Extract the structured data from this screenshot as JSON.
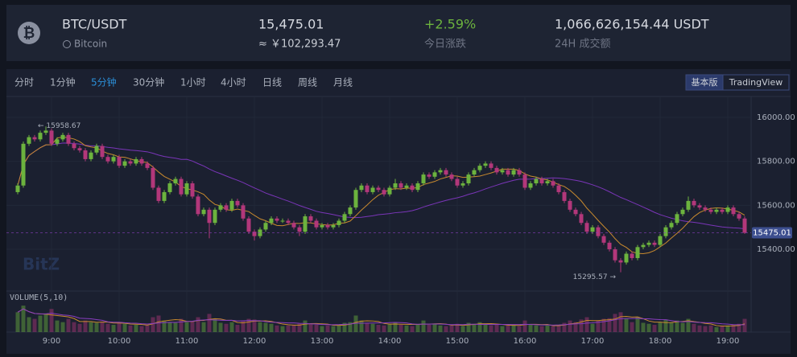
{
  "header": {
    "symbol": "BTC/USDT",
    "name": "Bitcoin",
    "price": "15,475.01",
    "price_cny": "≈ ￥102,293.47",
    "change": "+2.59%",
    "change_label": "今日涨跌",
    "volume": "1,066,626,154.44 USDT",
    "volume_label": "24H 成交额"
  },
  "toolbar": {
    "intervals": [
      "分时",
      "1分钟",
      "5分钟",
      "30分钟",
      "1小时",
      "4小时",
      "日线",
      "周线",
      "月线"
    ],
    "active": "5分钟",
    "modes": [
      "基本版",
      "TradingView"
    ]
  },
  "chart_data": {
    "type": "candlestick",
    "watermark": "BitZ",
    "up_color": "#6cb33e",
    "down_color": "#b2377a",
    "ylim": [
      15210,
      16095
    ],
    "yticks": [
      {
        "value": 16000,
        "label": "16000.00"
      },
      {
        "value": 15800,
        "label": "15800.00"
      },
      {
        "value": 15600,
        "label": "15600.00"
      },
      {
        "value": 15400,
        "label": "15400.00"
      }
    ],
    "xticks": [
      "9:00",
      "10:00",
      "11:00",
      "12:00",
      "13:00",
      "14:00",
      "15:00",
      "16:00",
      "17:00",
      "18:00",
      "19:00"
    ],
    "annotations": [
      "← 15958.67",
      "15295.57 →"
    ],
    "volume_title": "VOLUME(5,10)",
    "volume_ylim": [
      0,
      90
    ],
    "candles": [
      [
        15660,
        15700,
        15650,
        15690
      ],
      [
        15690,
        15890,
        15680,
        15880
      ],
      [
        15880,
        15920,
        15870,
        15910
      ],
      [
        15910,
        15920,
        15890,
        15900
      ],
      [
        15900,
        15940,
        15890,
        15930
      ],
      [
        15930,
        15958.67,
        15920,
        15940
      ],
      [
        15940,
        15950,
        15870,
        15880
      ],
      [
        15880,
        15910,
        15870,
        15900
      ],
      [
        15900,
        15930,
        15890,
        15920
      ],
      [
        15920,
        15930,
        15870,
        15880
      ],
      [
        15880,
        15890,
        15850,
        15860
      ],
      [
        15860,
        15870,
        15840,
        15850
      ],
      [
        15850,
        15860,
        15800,
        15810
      ],
      [
        15810,
        15850,
        15800,
        15840
      ],
      [
        15840,
        15880,
        15830,
        15870
      ],
      [
        15870,
        15880,
        15810,
        15820
      ],
      [
        15820,
        15830,
        15790,
        15800
      ],
      [
        15800,
        15830,
        15790,
        15820
      ],
      [
        15820,
        15830,
        15770,
        15780
      ],
      [
        15780,
        15810,
        15770,
        15800
      ],
      [
        15800,
        15810,
        15780,
        15790
      ],
      [
        15790,
        15820,
        15780,
        15810
      ],
      [
        15810,
        15820,
        15780,
        15790
      ],
      [
        15790,
        15800,
        15760,
        15770
      ],
      [
        15770,
        15780,
        15670,
        15680
      ],
      [
        15680,
        15690,
        15610,
        15620
      ],
      [
        15620,
        15670,
        15610,
        15660
      ],
      [
        15660,
        15710,
        15650,
        15700
      ],
      [
        15700,
        15730,
        15690,
        15720
      ],
      [
        15720,
        15730,
        15640,
        15650
      ],
      [
        15650,
        15710,
        15640,
        15700
      ],
      [
        15700,
        15710,
        15630,
        15640
      ],
      [
        15640,
        15650,
        15550,
        15560
      ],
      [
        15560,
        15590,
        15550,
        15580
      ],
      [
        15580,
        15590,
        15450,
        15520
      ],
      [
        15520,
        15590,
        15510,
        15580
      ],
      [
        15580,
        15610,
        15570,
        15600
      ],
      [
        15600,
        15610,
        15570,
        15580
      ],
      [
        15580,
        15630,
        15570,
        15620
      ],
      [
        15620,
        15630,
        15590,
        15600
      ],
      [
        15600,
        15610,
        15530,
        15540
      ],
      [
        15540,
        15550,
        15470,
        15480
      ],
      [
        15480,
        15490,
        15440,
        15460
      ],
      [
        15460,
        15500,
        15450,
        15490
      ],
      [
        15490,
        15530,
        15480,
        15520
      ],
      [
        15520,
        15550,
        15510,
        15540
      ],
      [
        15540,
        15550,
        15520,
        15530
      ],
      [
        15530,
        15540,
        15520,
        15530
      ],
      [
        15530,
        15540,
        15510,
        15520
      ],
      [
        15520,
        15530,
        15490,
        15500
      ],
      [
        15500,
        15510,
        15460,
        15480
      ],
      [
        15480,
        15560,
        15470,
        15550
      ],
      [
        15550,
        15560,
        15520,
        15530
      ],
      [
        15530,
        15540,
        15490,
        15500
      ],
      [
        15500,
        15520,
        15490,
        15510
      ],
      [
        15510,
        15520,
        15490,
        15500
      ],
      [
        15500,
        15520,
        15490,
        15510
      ],
      [
        15510,
        15540,
        15500,
        15530
      ],
      [
        15530,
        15570,
        15520,
        15560
      ],
      [
        15560,
        15600,
        15550,
        15590
      ],
      [
        15590,
        15680,
        15580,
        15670
      ],
      [
        15670,
        15700,
        15660,
        15690
      ],
      [
        15690,
        15700,
        15650,
        15660
      ],
      [
        15660,
        15690,
        15650,
        15680
      ],
      [
        15680,
        15690,
        15660,
        15670
      ],
      [
        15670,
        15680,
        15640,
        15650
      ],
      [
        15650,
        15690,
        15640,
        15680
      ],
      [
        15680,
        15720,
        15670,
        15700
      ],
      [
        15700,
        15710,
        15670,
        15680
      ],
      [
        15680,
        15700,
        15670,
        15690
      ],
      [
        15690,
        15700,
        15660,
        15670
      ],
      [
        15670,
        15710,
        15660,
        15700
      ],
      [
        15700,
        15750,
        15690,
        15740
      ],
      [
        15740,
        15750,
        15720,
        15730
      ],
      [
        15730,
        15760,
        15720,
        15750
      ],
      [
        15750,
        15770,
        15740,
        15760
      ],
      [
        15760,
        15770,
        15730,
        15740
      ],
      [
        15740,
        15750,
        15710,
        15720
      ],
      [
        15720,
        15730,
        15680,
        15690
      ],
      [
        15690,
        15710,
        15680,
        15700
      ],
      [
        15700,
        15750,
        15690,
        15740
      ],
      [
        15740,
        15770,
        15730,
        15760
      ],
      [
        15760,
        15790,
        15750,
        15780
      ],
      [
        15780,
        15800,
        15770,
        15790
      ],
      [
        15790,
        15800,
        15760,
        15770
      ],
      [
        15770,
        15780,
        15740,
        15750
      ],
      [
        15750,
        15770,
        15740,
        15760
      ],
      [
        15760,
        15770,
        15730,
        15740
      ],
      [
        15740,
        15770,
        15730,
        15760
      ],
      [
        15760,
        15770,
        15730,
        15740
      ],
      [
        15740,
        15750,
        15670,
        15680
      ],
      [
        15680,
        15710,
        15670,
        15700
      ],
      [
        15700,
        15730,
        15690,
        15720
      ],
      [
        15720,
        15730,
        15690,
        15700
      ],
      [
        15700,
        15720,
        15690,
        15710
      ],
      [
        15710,
        15720,
        15680,
        15690
      ],
      [
        15690,
        15700,
        15650,
        15660
      ],
      [
        15660,
        15670,
        15610,
        15620
      ],
      [
        15620,
        15630,
        15570,
        15580
      ],
      [
        15580,
        15590,
        15550,
        15560
      ],
      [
        15560,
        15570,
        15510,
        15520
      ],
      [
        15520,
        15530,
        15470,
        15480
      ],
      [
        15480,
        15510,
        15470,
        15500
      ],
      [
        15500,
        15510,
        15450,
        15460
      ],
      [
        15460,
        15470,
        15420,
        15430
      ],
      [
        15430,
        15440,
        15390,
        15400
      ],
      [
        15400,
        15410,
        15340,
        15350
      ],
      [
        15350,
        15360,
        15295.57,
        15340
      ],
      [
        15340,
        15390,
        15330,
        15380
      ],
      [
        15380,
        15390,
        15350,
        15360
      ],
      [
        15360,
        15420,
        15350,
        15410
      ],
      [
        15410,
        15430,
        15400,
        15420
      ],
      [
        15420,
        15440,
        15410,
        15430
      ],
      [
        15430,
        15440,
        15410,
        15420
      ],
      [
        15420,
        15470,
        15410,
        15460
      ],
      [
        15460,
        15510,
        15450,
        15500
      ],
      [
        15500,
        15530,
        15490,
        15520
      ],
      [
        15520,
        15570,
        15510,
        15560
      ],
      [
        15560,
        15590,
        15550,
        15580
      ],
      [
        15580,
        15640,
        15570,
        15620
      ],
      [
        15620,
        15630,
        15590,
        15600
      ],
      [
        15600,
        15610,
        15580,
        15590
      ],
      [
        15590,
        15600,
        15570,
        15580
      ],
      [
        15580,
        15590,
        15560,
        15570
      ],
      [
        15570,
        15590,
        15560,
        15580
      ],
      [
        15580,
        15590,
        15560,
        15570
      ],
      [
        15570,
        15600,
        15560,
        15590
      ],
      [
        15590,
        15600,
        15550,
        15560
      ],
      [
        15560,
        15570,
        15530,
        15540
      ],
      [
        15540,
        15550,
        15470,
        15475.01
      ]
    ],
    "volumes": [
      60,
      80,
      45,
      40,
      50,
      55,
      70,
      35,
      30,
      40,
      30,
      25,
      35,
      30,
      28,
      32,
      25,
      22,
      30,
      25,
      20,
      22,
      18,
      20,
      45,
      50,
      35,
      30,
      28,
      40,
      30,
      32,
      45,
      30,
      55,
      40,
      28,
      25,
      30,
      22,
      35,
      40,
      38,
      30,
      28,
      25,
      20,
      18,
      20,
      22,
      25,
      35,
      25,
      22,
      18,
      20,
      18,
      22,
      28,
      30,
      50,
      35,
      28,
      25,
      22,
      20,
      25,
      30,
      22,
      20,
      18,
      25,
      35,
      22,
      25,
      20,
      18,
      20,
      25,
      18,
      28,
      25,
      30,
      25,
      20,
      22,
      18,
      20,
      22,
      18,
      35,
      22,
      20,
      18,
      20,
      18,
      22,
      28,
      35,
      30,
      38,
      45,
      25,
      35,
      40,
      42,
      55,
      60,
      40,
      30,
      45,
      28,
      25,
      22,
      30,
      38,
      30,
      35,
      28,
      40,
      25,
      20,
      18,
      20,
      15,
      18,
      20,
      22,
      25,
      40
    ]
  }
}
